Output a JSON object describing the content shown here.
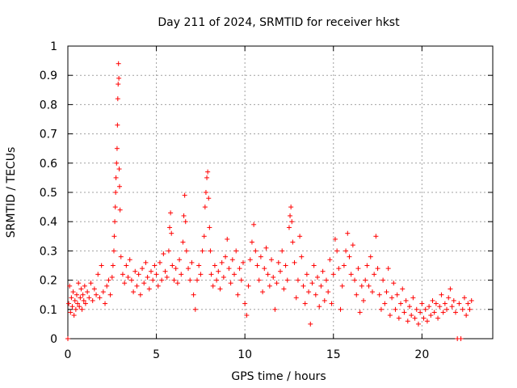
{
  "chart_data": {
    "type": "scatter",
    "title": "Day 211 of 2024, SRMTID for receiver hkst",
    "xlabel": "GPS time / hours",
    "ylabel": "SRMTID / TECUs",
    "xlim": [
      0,
      24
    ],
    "ylim": [
      0,
      1
    ],
    "xticks": [
      0,
      5,
      10,
      15,
      20
    ],
    "xtick_labels": [
      "0",
      "5",
      "10",
      "15",
      "20"
    ],
    "yticks": [
      0,
      0.1,
      0.2,
      0.3,
      0.4,
      0.5,
      0.6,
      0.7,
      0.8,
      0.9,
      1
    ],
    "ytick_labels": [
      "0",
      "0.1",
      "0.2",
      "0.3",
      "0.4",
      "0.5",
      "0.6",
      "0.7",
      "0.8",
      "0.9",
      "1"
    ],
    "grid": true,
    "marker": "+",
    "color": "#ff0000",
    "series": [
      {
        "name": "SRMTID",
        "points": [
          [
            0.0,
            0.0
          ],
          [
            0.05,
            0.12
          ],
          [
            0.1,
            0.18
          ],
          [
            0.15,
            0.09
          ],
          [
            0.2,
            0.14
          ],
          [
            0.25,
            0.11
          ],
          [
            0.3,
            0.16
          ],
          [
            0.35,
            0.08
          ],
          [
            0.4,
            0.13
          ],
          [
            0.45,
            0.1
          ],
          [
            0.5,
            0.15
          ],
          [
            0.55,
            0.12
          ],
          [
            0.6,
            0.19
          ],
          [
            0.65,
            0.11
          ],
          [
            0.7,
            0.14
          ],
          [
            0.75,
            0.17
          ],
          [
            0.8,
            0.1
          ],
          [
            0.85,
            0.15
          ],
          [
            0.9,
            0.13
          ],
          [
            0.95,
            0.18
          ],
          [
            1.0,
            0.12
          ],
          [
            1.1,
            0.16
          ],
          [
            1.2,
            0.14
          ],
          [
            1.3,
            0.19
          ],
          [
            1.4,
            0.13
          ],
          [
            1.5,
            0.17
          ],
          [
            1.6,
            0.15
          ],
          [
            1.7,
            0.22
          ],
          [
            1.8,
            0.14
          ],
          [
            1.9,
            0.25
          ],
          [
            2.0,
            0.16
          ],
          [
            2.1,
            0.12
          ],
          [
            2.2,
            0.18
          ],
          [
            2.3,
            0.2
          ],
          [
            2.4,
            0.15
          ],
          [
            2.5,
            0.21
          ],
          [
            2.55,
            0.25
          ],
          [
            2.6,
            0.3
          ],
          [
            2.62,
            0.35
          ],
          [
            2.65,
            0.4
          ],
          [
            2.68,
            0.45
          ],
          [
            2.7,
            0.5
          ],
          [
            2.72,
            0.55
          ],
          [
            2.75,
            0.6
          ],
          [
            2.78,
            0.65
          ],
          [
            2.8,
            0.73
          ],
          [
            2.82,
            0.82
          ],
          [
            2.84,
            0.87
          ],
          [
            2.86,
            0.94
          ],
          [
            2.88,
            0.89
          ],
          [
            2.9,
            0.58
          ],
          [
            2.92,
            0.52
          ],
          [
            2.95,
            0.44
          ],
          [
            3.0,
            0.28
          ],
          [
            3.1,
            0.22
          ],
          [
            3.2,
            0.19
          ],
          [
            3.3,
            0.25
          ],
          [
            3.4,
            0.21
          ],
          [
            3.5,
            0.27
          ],
          [
            3.6,
            0.2
          ],
          [
            3.7,
            0.16
          ],
          [
            3.8,
            0.23
          ],
          [
            3.9,
            0.18
          ],
          [
            4.0,
            0.22
          ],
          [
            4.1,
            0.15
          ],
          [
            4.2,
            0.24
          ],
          [
            4.3,
            0.19
          ],
          [
            4.4,
            0.26
          ],
          [
            4.5,
            0.21
          ],
          [
            4.6,
            0.17
          ],
          [
            4.7,
            0.23
          ],
          [
            4.8,
            0.2
          ],
          [
            4.9,
            0.25
          ],
          [
            5.0,
            0.22
          ],
          [
            5.1,
            0.18
          ],
          [
            5.2,
            0.26
          ],
          [
            5.3,
            0.2
          ],
          [
            5.4,
            0.29
          ],
          [
            5.5,
            0.23
          ],
          [
            5.6,
            0.21
          ],
          [
            5.7,
            0.3
          ],
          [
            5.75,
            0.38
          ],
          [
            5.8,
            0.43
          ],
          [
            5.85,
            0.36
          ],
          [
            5.9,
            0.25
          ],
          [
            6.0,
            0.2
          ],
          [
            6.1,
            0.24
          ],
          [
            6.2,
            0.19
          ],
          [
            6.3,
            0.27
          ],
          [
            6.4,
            0.22
          ],
          [
            6.5,
            0.33
          ],
          [
            6.55,
            0.42
          ],
          [
            6.6,
            0.49
          ],
          [
            6.65,
            0.4
          ],
          [
            6.7,
            0.3
          ],
          [
            6.8,
            0.24
          ],
          [
            6.9,
            0.2
          ],
          [
            7.0,
            0.26
          ],
          [
            7.1,
            0.15
          ],
          [
            7.2,
            0.1
          ],
          [
            7.3,
            0.2
          ],
          [
            7.4,
            0.25
          ],
          [
            7.5,
            0.22
          ],
          [
            7.6,
            0.3
          ],
          [
            7.7,
            0.35
          ],
          [
            7.75,
            0.45
          ],
          [
            7.8,
            0.5
          ],
          [
            7.85,
            0.55
          ],
          [
            7.9,
            0.57
          ],
          [
            7.95,
            0.48
          ],
          [
            8.0,
            0.38
          ],
          [
            8.05,
            0.3
          ],
          [
            8.1,
            0.22
          ],
          [
            8.2,
            0.18
          ],
          [
            8.3,
            0.25
          ],
          [
            8.4,
            0.2
          ],
          [
            8.5,
            0.23
          ],
          [
            8.6,
            0.17
          ],
          [
            8.7,
            0.26
          ],
          [
            8.8,
            0.21
          ],
          [
            8.9,
            0.28
          ],
          [
            9.0,
            0.34
          ],
          [
            9.1,
            0.24
          ],
          [
            9.2,
            0.19
          ],
          [
            9.3,
            0.27
          ],
          [
            9.4,
            0.22
          ],
          [
            9.5,
            0.3
          ],
          [
            9.6,
            0.15
          ],
          [
            9.7,
            0.24
          ],
          [
            9.8,
            0.2
          ],
          [
            9.9,
            0.26
          ],
          [
            10.0,
            0.12
          ],
          [
            10.1,
            0.08
          ],
          [
            10.2,
            0.18
          ],
          [
            10.3,
            0.27
          ],
          [
            10.4,
            0.33
          ],
          [
            10.5,
            0.39
          ],
          [
            10.6,
            0.3
          ],
          [
            10.7,
            0.25
          ],
          [
            10.8,
            0.2
          ],
          [
            10.9,
            0.28
          ],
          [
            11.0,
            0.16
          ],
          [
            11.1,
            0.24
          ],
          [
            11.2,
            0.31
          ],
          [
            11.3,
            0.22
          ],
          [
            11.4,
            0.18
          ],
          [
            11.5,
            0.27
          ],
          [
            11.6,
            0.21
          ],
          [
            11.7,
            0.1
          ],
          [
            11.8,
            0.19
          ],
          [
            11.9,
            0.26
          ],
          [
            12.0,
            0.23
          ],
          [
            12.1,
            0.3
          ],
          [
            12.2,
            0.17
          ],
          [
            12.3,
            0.25
          ],
          [
            12.4,
            0.2
          ],
          [
            12.5,
            0.38
          ],
          [
            12.55,
            0.42
          ],
          [
            12.6,
            0.45
          ],
          [
            12.65,
            0.4
          ],
          [
            12.7,
            0.33
          ],
          [
            12.8,
            0.26
          ],
          [
            12.9,
            0.14
          ],
          [
            13.0,
            0.2
          ],
          [
            13.1,
            0.35
          ],
          [
            13.2,
            0.28
          ],
          [
            13.3,
            0.18
          ],
          [
            13.4,
            0.12
          ],
          [
            13.5,
            0.22
          ],
          [
            13.6,
            0.16
          ],
          [
            13.7,
            0.05
          ],
          [
            13.8,
            0.19
          ],
          [
            13.9,
            0.25
          ],
          [
            14.0,
            0.15
          ],
          [
            14.1,
            0.21
          ],
          [
            14.2,
            0.11
          ],
          [
            14.3,
            0.18
          ],
          [
            14.4,
            0.23
          ],
          [
            14.5,
            0.13
          ],
          [
            14.6,
            0.2
          ],
          [
            14.7,
            0.16
          ],
          [
            14.8,
            0.27
          ],
          [
            14.9,
            0.12
          ],
          [
            15.0,
            0.22
          ],
          [
            15.1,
            0.34
          ],
          [
            15.2,
            0.3
          ],
          [
            15.3,
            0.24
          ],
          [
            15.4,
            0.1
          ],
          [
            15.5,
            0.18
          ],
          [
            15.6,
            0.25
          ],
          [
            15.7,
            0.3
          ],
          [
            15.8,
            0.36
          ],
          [
            15.9,
            0.28
          ],
          [
            16.0,
            0.22
          ],
          [
            16.1,
            0.32
          ],
          [
            16.2,
            0.2
          ],
          [
            16.3,
            0.15
          ],
          [
            16.4,
            0.24
          ],
          [
            16.5,
            0.09
          ],
          [
            16.6,
            0.18
          ],
          [
            16.7,
            0.13
          ],
          [
            16.8,
            0.2
          ],
          [
            16.9,
            0.25
          ],
          [
            17.0,
            0.18
          ],
          [
            17.1,
            0.28
          ],
          [
            17.2,
            0.16
          ],
          [
            17.3,
            0.22
          ],
          [
            17.4,
            0.35
          ],
          [
            17.5,
            0.24
          ],
          [
            17.6,
            0.15
          ],
          [
            17.7,
            0.1
          ],
          [
            17.8,
            0.2
          ],
          [
            17.9,
            0.12
          ],
          [
            18.0,
            0.16
          ],
          [
            18.1,
            0.24
          ],
          [
            18.2,
            0.08
          ],
          [
            18.3,
            0.14
          ],
          [
            18.4,
            0.19
          ],
          [
            18.5,
            0.1
          ],
          [
            18.6,
            0.15
          ],
          [
            18.7,
            0.07
          ],
          [
            18.8,
            0.12
          ],
          [
            18.9,
            0.17
          ],
          [
            19.0,
            0.09
          ],
          [
            19.1,
            0.13
          ],
          [
            19.2,
            0.06
          ],
          [
            19.3,
            0.11
          ],
          [
            19.4,
            0.08
          ],
          [
            19.5,
            0.14
          ],
          [
            19.6,
            0.07
          ],
          [
            19.7,
            0.1
          ],
          [
            19.8,
            0.05
          ],
          [
            19.9,
            0.09
          ],
          [
            20.0,
            0.12
          ],
          [
            20.1,
            0.07
          ],
          [
            20.2,
            0.1
          ],
          [
            20.3,
            0.06
          ],
          [
            20.4,
            0.11
          ],
          [
            20.5,
            0.08
          ],
          [
            20.6,
            0.13
          ],
          [
            20.7,
            0.09
          ],
          [
            20.8,
            0.12
          ],
          [
            20.9,
            0.07
          ],
          [
            21.0,
            0.11
          ],
          [
            21.1,
            0.15
          ],
          [
            21.2,
            0.09
          ],
          [
            21.3,
            0.12
          ],
          [
            21.4,
            0.1
          ],
          [
            21.5,
            0.14
          ],
          [
            21.6,
            0.17
          ],
          [
            21.7,
            0.11
          ],
          [
            21.8,
            0.13
          ],
          [
            21.9,
            0.09
          ],
          [
            22.0,
            0.0
          ],
          [
            22.1,
            0.12
          ],
          [
            22.2,
            0.0
          ],
          [
            22.3,
            0.1
          ],
          [
            22.4,
            0.14
          ],
          [
            22.5,
            0.08
          ],
          [
            22.6,
            0.12
          ],
          [
            22.7,
            0.1
          ],
          [
            22.8,
            0.13
          ]
        ]
      }
    ]
  }
}
